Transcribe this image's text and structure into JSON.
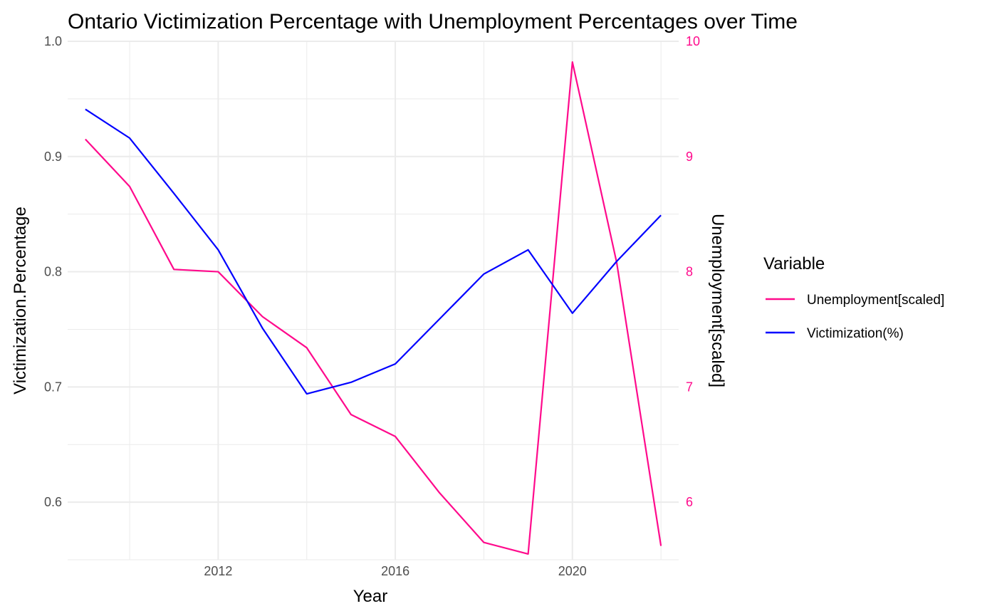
{
  "chart_data": {
    "type": "line",
    "title": "Ontario Victimization Percentage with Unemployment Percentages over Time",
    "xlabel": "Year",
    "ylabel": "Victimization.Percentage",
    "ylabel_right": "Unemployment[scaled]",
    "x": [
      2009,
      2010,
      2011,
      2012,
      2013,
      2014,
      2015,
      2016,
      2017,
      2018,
      2019,
      2020,
      2021,
      2022
    ],
    "xlim": [
      2008.6,
      2022.4
    ],
    "xticks": [
      2012,
      2016,
      2020
    ],
    "xtick_labels": [
      "2012",
      "2016",
      "2020"
    ],
    "ylim": [
      0.55,
      1.0
    ],
    "yticks": [
      0.6,
      0.7,
      0.8,
      0.9,
      1.0
    ],
    "ytick_labels": [
      "0.6",
      "0.7",
      "0.8",
      "0.9",
      "1.0"
    ],
    "ylim_right": [
      5.5,
      10
    ],
    "yticks_right": [
      6,
      7,
      8,
      9,
      10
    ],
    "ytick_labels_right": [
      "6",
      "7",
      "8",
      "9",
      "10"
    ],
    "grid": true,
    "legend_title": "Variable",
    "legend_position": "right",
    "series": [
      {
        "name": "Unemployment[scaled]",
        "color": "#ff0a8c",
        "axis": "left",
        "values": [
          0.915,
          0.874,
          0.802,
          0.8,
          0.761,
          0.734,
          0.676,
          0.657,
          0.608,
          0.565,
          0.555,
          0.982,
          0.808,
          0.562
        ]
      },
      {
        "name": "Victimization(%)",
        "color": "#0000ff",
        "axis": "left",
        "values": [
          0.941,
          0.916,
          0.868,
          0.819,
          0.751,
          0.694,
          0.704,
          0.72,
          0.759,
          0.798,
          0.819,
          0.764,
          0.809,
          0.849
        ]
      }
    ],
    "colors": {
      "right_axis": "#ff0a8c",
      "grid": "#ebebeb",
      "tick_text": "#4d4d4d"
    }
  }
}
